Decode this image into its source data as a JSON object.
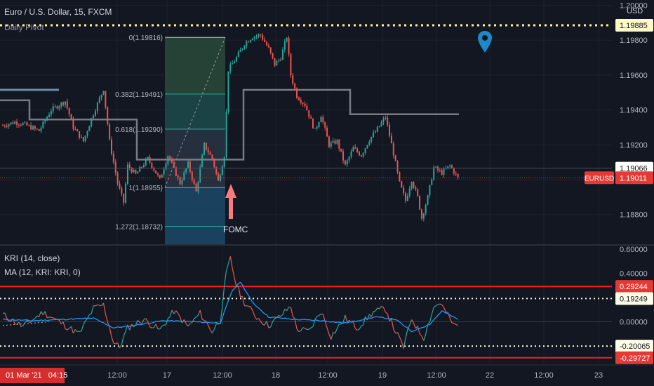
{
  "header": {
    "symbol_title": "Euro / U.S. Dollar, 15, FXCM",
    "pivot_label": "Daily Pivot",
    "indicator1": "KRI (14, close)",
    "indicator2": "MA (12, KRI: KRI, 0)"
  },
  "currency": "USD",
  "date_badge": "01 Mar '21   04:15",
  "annotations": {
    "fomc": "FOMC",
    "fib_levels": [
      "0(1.19816)",
      "0.382(1.19491)",
      "0.618(1.19290)",
      "1(1.18955)",
      "1.272(1.18732)"
    ]
  },
  "colors": {
    "background": "#131722",
    "up_candle": "#26a69a",
    "down_candle": "#ef5350",
    "kri_up": "#26a69a",
    "kri_down": "#ef5350",
    "ma_line": "#2196f3",
    "threshold_line": "#ff1a1a",
    "dotted_level": "#fff59d",
    "pivot_line": "#787b86",
    "arrow": "#f77c80",
    "marker": "#1e88c8"
  },
  "chart_data": [
    {
      "type": "candlestick",
      "title": "Euro / U.S. Dollar, 15, FXCM",
      "symbol": "EURUSD",
      "last_price": "1.19011",
      "price_labels": {
        "resistance": "1.19885",
        "level": "1.19066",
        "last": "1.19011"
      },
      "y_ticks": [
        "1.20000",
        "1.19800",
        "1.19600",
        "1.19400",
        "1.19200",
        "1.19000",
        "1.18800"
      ],
      "x_ticks": [
        "12:00",
        "17",
        "12:00",
        "18",
        "12:00",
        "19",
        "12:00",
        "22",
        "12:00",
        "23"
      ],
      "ylim": [
        1.1863,
        1.2003
      ],
      "approx_close_path": [
        [
          0,
          1.1931
        ],
        [
          6,
          1.1933
        ],
        [
          10,
          1.1932
        ],
        [
          18,
          1.1928
        ],
        [
          24,
          1.194
        ],
        [
          31,
          1.1945
        ],
        [
          35,
          1.193
        ],
        [
          40,
          1.1922
        ],
        [
          44,
          1.1935
        ],
        [
          50,
          1.1952
        ],
        [
          53,
          1.1922
        ],
        [
          57,
          1.1898
        ],
        [
          60,
          1.1887
        ],
        [
          62,
          1.1908
        ],
        [
          66,
          1.1903
        ],
        [
          72,
          1.1912
        ],
        [
          78,
          1.19
        ],
        [
          82,
          1.1914
        ],
        [
          88,
          1.1898
        ],
        [
          92,
          1.1909
        ],
        [
          96,
          1.1893
        ],
        [
          100,
          1.192
        ],
        [
          104,
          1.1912
        ],
        [
          107,
          1.1899
        ],
        [
          110,
          1.1914
        ],
        [
          112,
          1.1963
        ],
        [
          116,
          1.197
        ],
        [
          120,
          1.1978
        ],
        [
          124,
          1.1982
        ],
        [
          128,
          1.1983
        ],
        [
          132,
          1.1975
        ],
        [
          135,
          1.1966
        ],
        [
          138,
          1.197
        ],
        [
          141,
          1.1982
        ],
        [
          143,
          1.196
        ],
        [
          146,
          1.1948
        ],
        [
          150,
          1.1943
        ],
        [
          155,
          1.1928
        ],
        [
          158,
          1.1937
        ],
        [
          162,
          1.192
        ],
        [
          166,
          1.1922
        ],
        [
          170,
          1.1908
        ],
        [
          174,
          1.1918
        ],
        [
          178,
          1.1914
        ],
        [
          182,
          1.1923
        ],
        [
          186,
          1.1929
        ],
        [
          190,
          1.1936
        ],
        [
          194,
          1.1915
        ],
        [
          197,
          1.1898
        ],
        [
          200,
          1.1888
        ],
        [
          203,
          1.19
        ],
        [
          206,
          1.189
        ],
        [
          208,
          1.1878
        ],
        [
          211,
          1.189
        ],
        [
          214,
          1.1907
        ],
        [
          218,
          1.1904
        ],
        [
          222,
          1.1908
        ],
        [
          226,
          1.1901
        ]
      ],
      "levels": [
        {
          "name": "resistance",
          "value": 1.19885
        },
        {
          "name": "level",
          "value": 1.19066
        },
        {
          "name": "last",
          "value": 1.19011
        }
      ]
    },
    {
      "type": "line",
      "title": "KRI (14, close)",
      "series": [
        {
          "name": "KRI (14, close)"
        },
        {
          "name": "MA (12, KRI: KRI, 0)"
        }
      ],
      "y_ticks": [
        "0.60000",
        "0.40000",
        "0.00000",
        "-0.20000"
      ],
      "ylim": [
        -0.345,
        0.63
      ],
      "threshold_labels": [
        "0.29244",
        "0.19249",
        "-0.20065",
        "-0.29727"
      ],
      "thresholds": [
        0.29244,
        0.19249,
        -0.20065,
        -0.29727
      ],
      "kri_values": [
        [
          0,
          0.06
        ],
        [
          10,
          -0.04
        ],
        [
          20,
          0.08
        ],
        [
          30,
          -0.02
        ],
        [
          38,
          -0.1
        ],
        [
          45,
          0.11
        ],
        [
          50,
          0.14
        ],
        [
          55,
          -0.17
        ],
        [
          58,
          -0.21
        ],
        [
          62,
          -0.05
        ],
        [
          70,
          0.02
        ],
        [
          78,
          -0.07
        ],
        [
          85,
          0.09
        ],
        [
          92,
          -0.04
        ],
        [
          98,
          0.07
        ],
        [
          104,
          -0.08
        ],
        [
          108,
          0.02
        ],
        [
          111,
          0.4
        ],
        [
          113,
          0.52
        ],
        [
          116,
          0.3
        ],
        [
          120,
          0.16
        ],
        [
          126,
          0.04
        ],
        [
          132,
          -0.03
        ],
        [
          138,
          0.05
        ],
        [
          143,
          0.13
        ],
        [
          146,
          -0.06
        ],
        [
          152,
          -0.08
        ],
        [
          158,
          0.09
        ],
        [
          163,
          -0.12
        ],
        [
          170,
          0.03
        ],
        [
          176,
          -0.05
        ],
        [
          184,
          0.08
        ],
        [
          190,
          0.11
        ],
        [
          195,
          -0.08
        ],
        [
          199,
          -0.21
        ],
        [
          203,
          0.03
        ],
        [
          206,
          -0.06
        ],
        [
          209,
          -0.13
        ],
        [
          214,
          0.12
        ],
        [
          217,
          0.16
        ],
        [
          220,
          0.08
        ],
        [
          224,
          -0.03
        ]
      ],
      "ma_values": [
        [
          0,
          0.02
        ],
        [
          15,
          0.01
        ],
        [
          30,
          0.02
        ],
        [
          45,
          0.03
        ],
        [
          55,
          -0.05
        ],
        [
          65,
          -0.03
        ],
        [
          80,
          0.01
        ],
        [
          95,
          0.0
        ],
        [
          108,
          -0.01
        ],
        [
          114,
          0.26
        ],
        [
          118,
          0.33
        ],
        [
          124,
          0.16
        ],
        [
          132,
          0.04
        ],
        [
          145,
          0.02
        ],
        [
          158,
          0.01
        ],
        [
          170,
          -0.01
        ],
        [
          185,
          0.04
        ],
        [
          195,
          0.02
        ],
        [
          203,
          -0.08
        ],
        [
          212,
          -0.02
        ],
        [
          218,
          0.09
        ],
        [
          226,
          0.02
        ]
      ]
    }
  ]
}
